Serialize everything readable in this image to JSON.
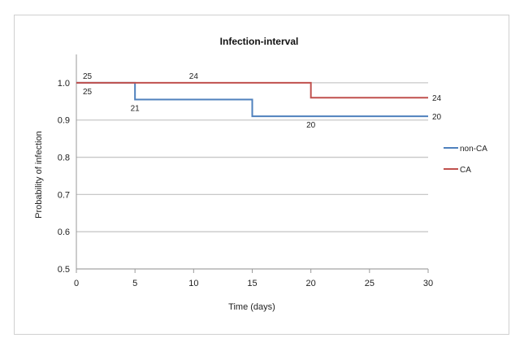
{
  "chart_data": {
    "type": "line",
    "step": true,
    "title": "Infection-interval",
    "xlabel": "Time (days)",
    "ylabel": "Probability of infection",
    "xlim": [
      0,
      30
    ],
    "ylim": [
      0.5,
      1.05
    ],
    "x_ticks": [
      0,
      5,
      10,
      15,
      20,
      25,
      30
    ],
    "x_tick_labels": [
      "0",
      "5",
      "10",
      "15",
      "20",
      "25",
      "30"
    ],
    "y_ticks": [
      0.5,
      0.6,
      0.7,
      0.8,
      0.9,
      1.0
    ],
    "y_tick_labels": [
      "0.5",
      "0.6",
      "0.7",
      "0.8",
      "0.9",
      "1.0"
    ],
    "grid": "horizontal",
    "legend_position": "right",
    "series": [
      {
        "name": "non-CA",
        "color": "#4f81bd",
        "x": [
          0,
          5,
          15,
          30
        ],
        "y": [
          1.0,
          0.955,
          0.91,
          0.91
        ],
        "labels": [
          {
            "text": "25",
            "x": 0,
            "y": 1.0,
            "pos": "below"
          },
          {
            "text": "21",
            "x": 5,
            "y": 0.955,
            "pos": "below"
          },
          {
            "text": "20",
            "x": 20,
            "y": 0.91,
            "pos": "below"
          },
          {
            "text": "20",
            "x": 30,
            "y": 0.91,
            "pos": "right"
          }
        ]
      },
      {
        "name": "CA",
        "color": "#c0504d",
        "x": [
          0,
          20,
          30
        ],
        "y": [
          1.0,
          0.96,
          0.96
        ],
        "labels": [
          {
            "text": "25",
            "x": 0,
            "y": 1.0,
            "pos": "above"
          },
          {
            "text": "24",
            "x": 10,
            "y": 1.0,
            "pos": "above"
          },
          {
            "text": "24",
            "x": 30,
            "y": 0.96,
            "pos": "right"
          }
        ]
      }
    ]
  }
}
